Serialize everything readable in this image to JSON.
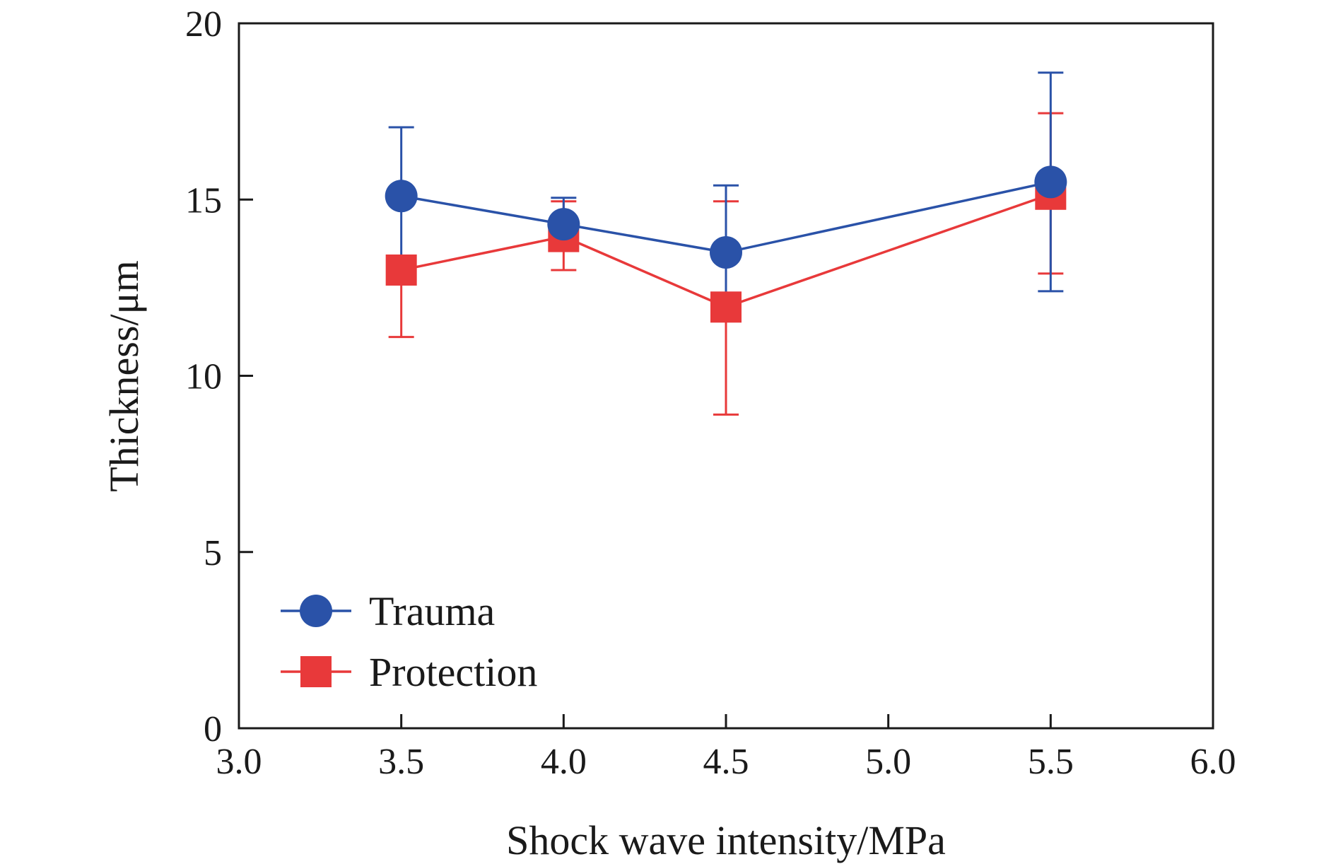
{
  "chart_data": {
    "type": "line",
    "xlabel": "Shock wave intensity/MPa",
    "ylabel": "Thickness/μm",
    "xlim": [
      3.0,
      6.0
    ],
    "ylim": [
      0,
      20
    ],
    "x_ticks": [
      "3.0",
      "3.5",
      "4.0",
      "4.5",
      "5.0",
      "5.5",
      "6.0"
    ],
    "y_ticks": [
      "0",
      "5",
      "10",
      "15",
      "20"
    ],
    "grid": false,
    "legend_position": "bottom-left",
    "x": [
      3.5,
      4.0,
      4.5,
      5.5
    ],
    "series": [
      {
        "name": "Trauma",
        "color": "#2a52a8",
        "marker": "circle",
        "values": [
          15.1,
          14.3,
          13.5,
          15.5
        ],
        "error_low": [
          13.1,
          13.6,
          11.6,
          12.4
        ],
        "error_high": [
          17.05,
          15.05,
          15.4,
          18.6
        ]
      },
      {
        "name": "Protection",
        "color": "#e8393a",
        "marker": "square",
        "values": [
          13.0,
          13.95,
          11.95,
          15.15
        ],
        "error_low": [
          11.1,
          13.0,
          8.9,
          12.9
        ],
        "error_high": [
          13.3,
          14.95,
          14.95,
          17.45
        ]
      }
    ]
  }
}
